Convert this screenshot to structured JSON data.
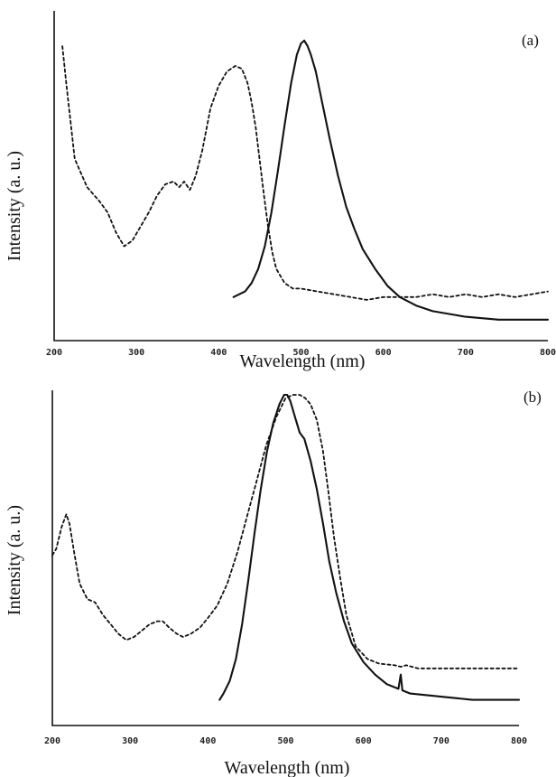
{
  "chart_data": [
    {
      "type": "line",
      "panel_label": "(a)",
      "xlabel": "Wavelength (nm)",
      "ylabel": "Intensity (a. u.)",
      "xlim": [
        200,
        800
      ],
      "ylim": [
        0,
        1
      ],
      "x_ticks": [
        "200",
        "300",
        "400",
        "500",
        "600",
        "700",
        "800"
      ],
      "grid": false,
      "series": [
        {
          "style": "dashed",
          "x": [
            210,
            215,
            225,
            240,
            255,
            265,
            275,
            285,
            295,
            305,
            315,
            325,
            335,
            345,
            352,
            358,
            365,
            372,
            380,
            390,
            400,
            410,
            420,
            428,
            435,
            440,
            445,
            450,
            455,
            460,
            465,
            470,
            480,
            490,
            500,
            520,
            540,
            560,
            580,
            600,
            620,
            640,
            660,
            680,
            700,
            720,
            740,
            760,
            780,
            800
          ],
          "y": [
            0.99,
            0.85,
            0.59,
            0.49,
            0.44,
            0.4,
            0.33,
            0.28,
            0.3,
            0.35,
            0.4,
            0.46,
            0.5,
            0.51,
            0.49,
            0.51,
            0.48,
            0.53,
            0.62,
            0.77,
            0.85,
            0.9,
            0.92,
            0.91,
            0.86,
            0.79,
            0.7,
            0.58,
            0.46,
            0.35,
            0.26,
            0.2,
            0.15,
            0.13,
            0.13,
            0.12,
            0.11,
            0.1,
            0.09,
            0.1,
            0.1,
            0.1,
            0.11,
            0.1,
            0.11,
            0.1,
            0.11,
            0.1,
            0.11,
            0.12
          ]
        },
        {
          "style": "solid",
          "x": [
            418,
            425,
            432,
            440,
            448,
            456,
            464,
            472,
            480,
            488,
            495,
            500,
            504,
            508,
            512,
            518,
            525,
            535,
            545,
            555,
            565,
            575,
            590,
            605,
            620,
            640,
            660,
            680,
            700,
            720,
            740,
            760,
            780,
            800
          ],
          "y": [
            0.1,
            0.11,
            0.12,
            0.15,
            0.2,
            0.28,
            0.4,
            0.55,
            0.71,
            0.86,
            0.96,
            1.0,
            1.01,
            0.99,
            0.96,
            0.9,
            0.8,
            0.66,
            0.53,
            0.42,
            0.34,
            0.27,
            0.2,
            0.14,
            0.1,
            0.07,
            0.05,
            0.04,
            0.03,
            0.025,
            0.02,
            0.02,
            0.02,
            0.02
          ]
        }
      ]
    },
    {
      "type": "line",
      "panel_label": "(b)",
      "xlabel": "Wavelength (nm)",
      "ylabel": "Intensity (a. u.)",
      "xlim": [
        200,
        800
      ],
      "ylim": [
        0,
        1
      ],
      "x_ticks": [
        "200",
        "300",
        "400",
        "500",
        "600",
        "700",
        "800"
      ],
      "grid": false,
      "series": [
        {
          "style": "dashed",
          "x": [
            200,
            205,
            212,
            218,
            222,
            228,
            235,
            245,
            255,
            265,
            275,
            285,
            295,
            305,
            315,
            325,
            335,
            342,
            350,
            360,
            368,
            378,
            390,
            400,
            412,
            425,
            438,
            450,
            462,
            475,
            488,
            500,
            510,
            518,
            525,
            532,
            540,
            548,
            555,
            562,
            570,
            578,
            590,
            605,
            620,
            640,
            648,
            655,
            670,
            700,
            730,
            760,
            800
          ],
          "y": [
            0.49,
            0.51,
            0.58,
            0.62,
            0.59,
            0.5,
            0.4,
            0.35,
            0.34,
            0.3,
            0.27,
            0.24,
            0.22,
            0.23,
            0.25,
            0.27,
            0.28,
            0.28,
            0.26,
            0.24,
            0.23,
            0.24,
            0.26,
            0.29,
            0.33,
            0.4,
            0.5,
            0.61,
            0.72,
            0.84,
            0.93,
            0.99,
            1.0,
            1.0,
            0.99,
            0.97,
            0.92,
            0.82,
            0.69,
            0.55,
            0.42,
            0.3,
            0.2,
            0.16,
            0.145,
            0.14,
            0.135,
            0.14,
            0.13,
            0.13,
            0.13,
            0.13,
            0.13
          ]
        },
        {
          "style": "solid",
          "x": [
            415,
            420,
            428,
            436,
            444,
            452,
            460,
            468,
            476,
            484,
            492,
            498,
            502,
            506,
            512,
            518,
            524,
            532,
            540,
            548,
            556,
            565,
            575,
            585,
            600,
            615,
            630,
            645,
            648,
            650,
            660,
            680,
            700,
            720,
            740,
            760,
            780,
            800
          ],
          "y": [
            0.03,
            0.05,
            0.09,
            0.16,
            0.27,
            0.41,
            0.56,
            0.7,
            0.82,
            0.91,
            0.97,
            1.0,
            1.0,
            0.98,
            0.93,
            0.88,
            0.86,
            0.79,
            0.7,
            0.59,
            0.47,
            0.37,
            0.28,
            0.21,
            0.15,
            0.11,
            0.08,
            0.065,
            0.11,
            0.06,
            0.05,
            0.045,
            0.04,
            0.035,
            0.03,
            0.03,
            0.03,
            0.03
          ]
        }
      ]
    }
  ]
}
